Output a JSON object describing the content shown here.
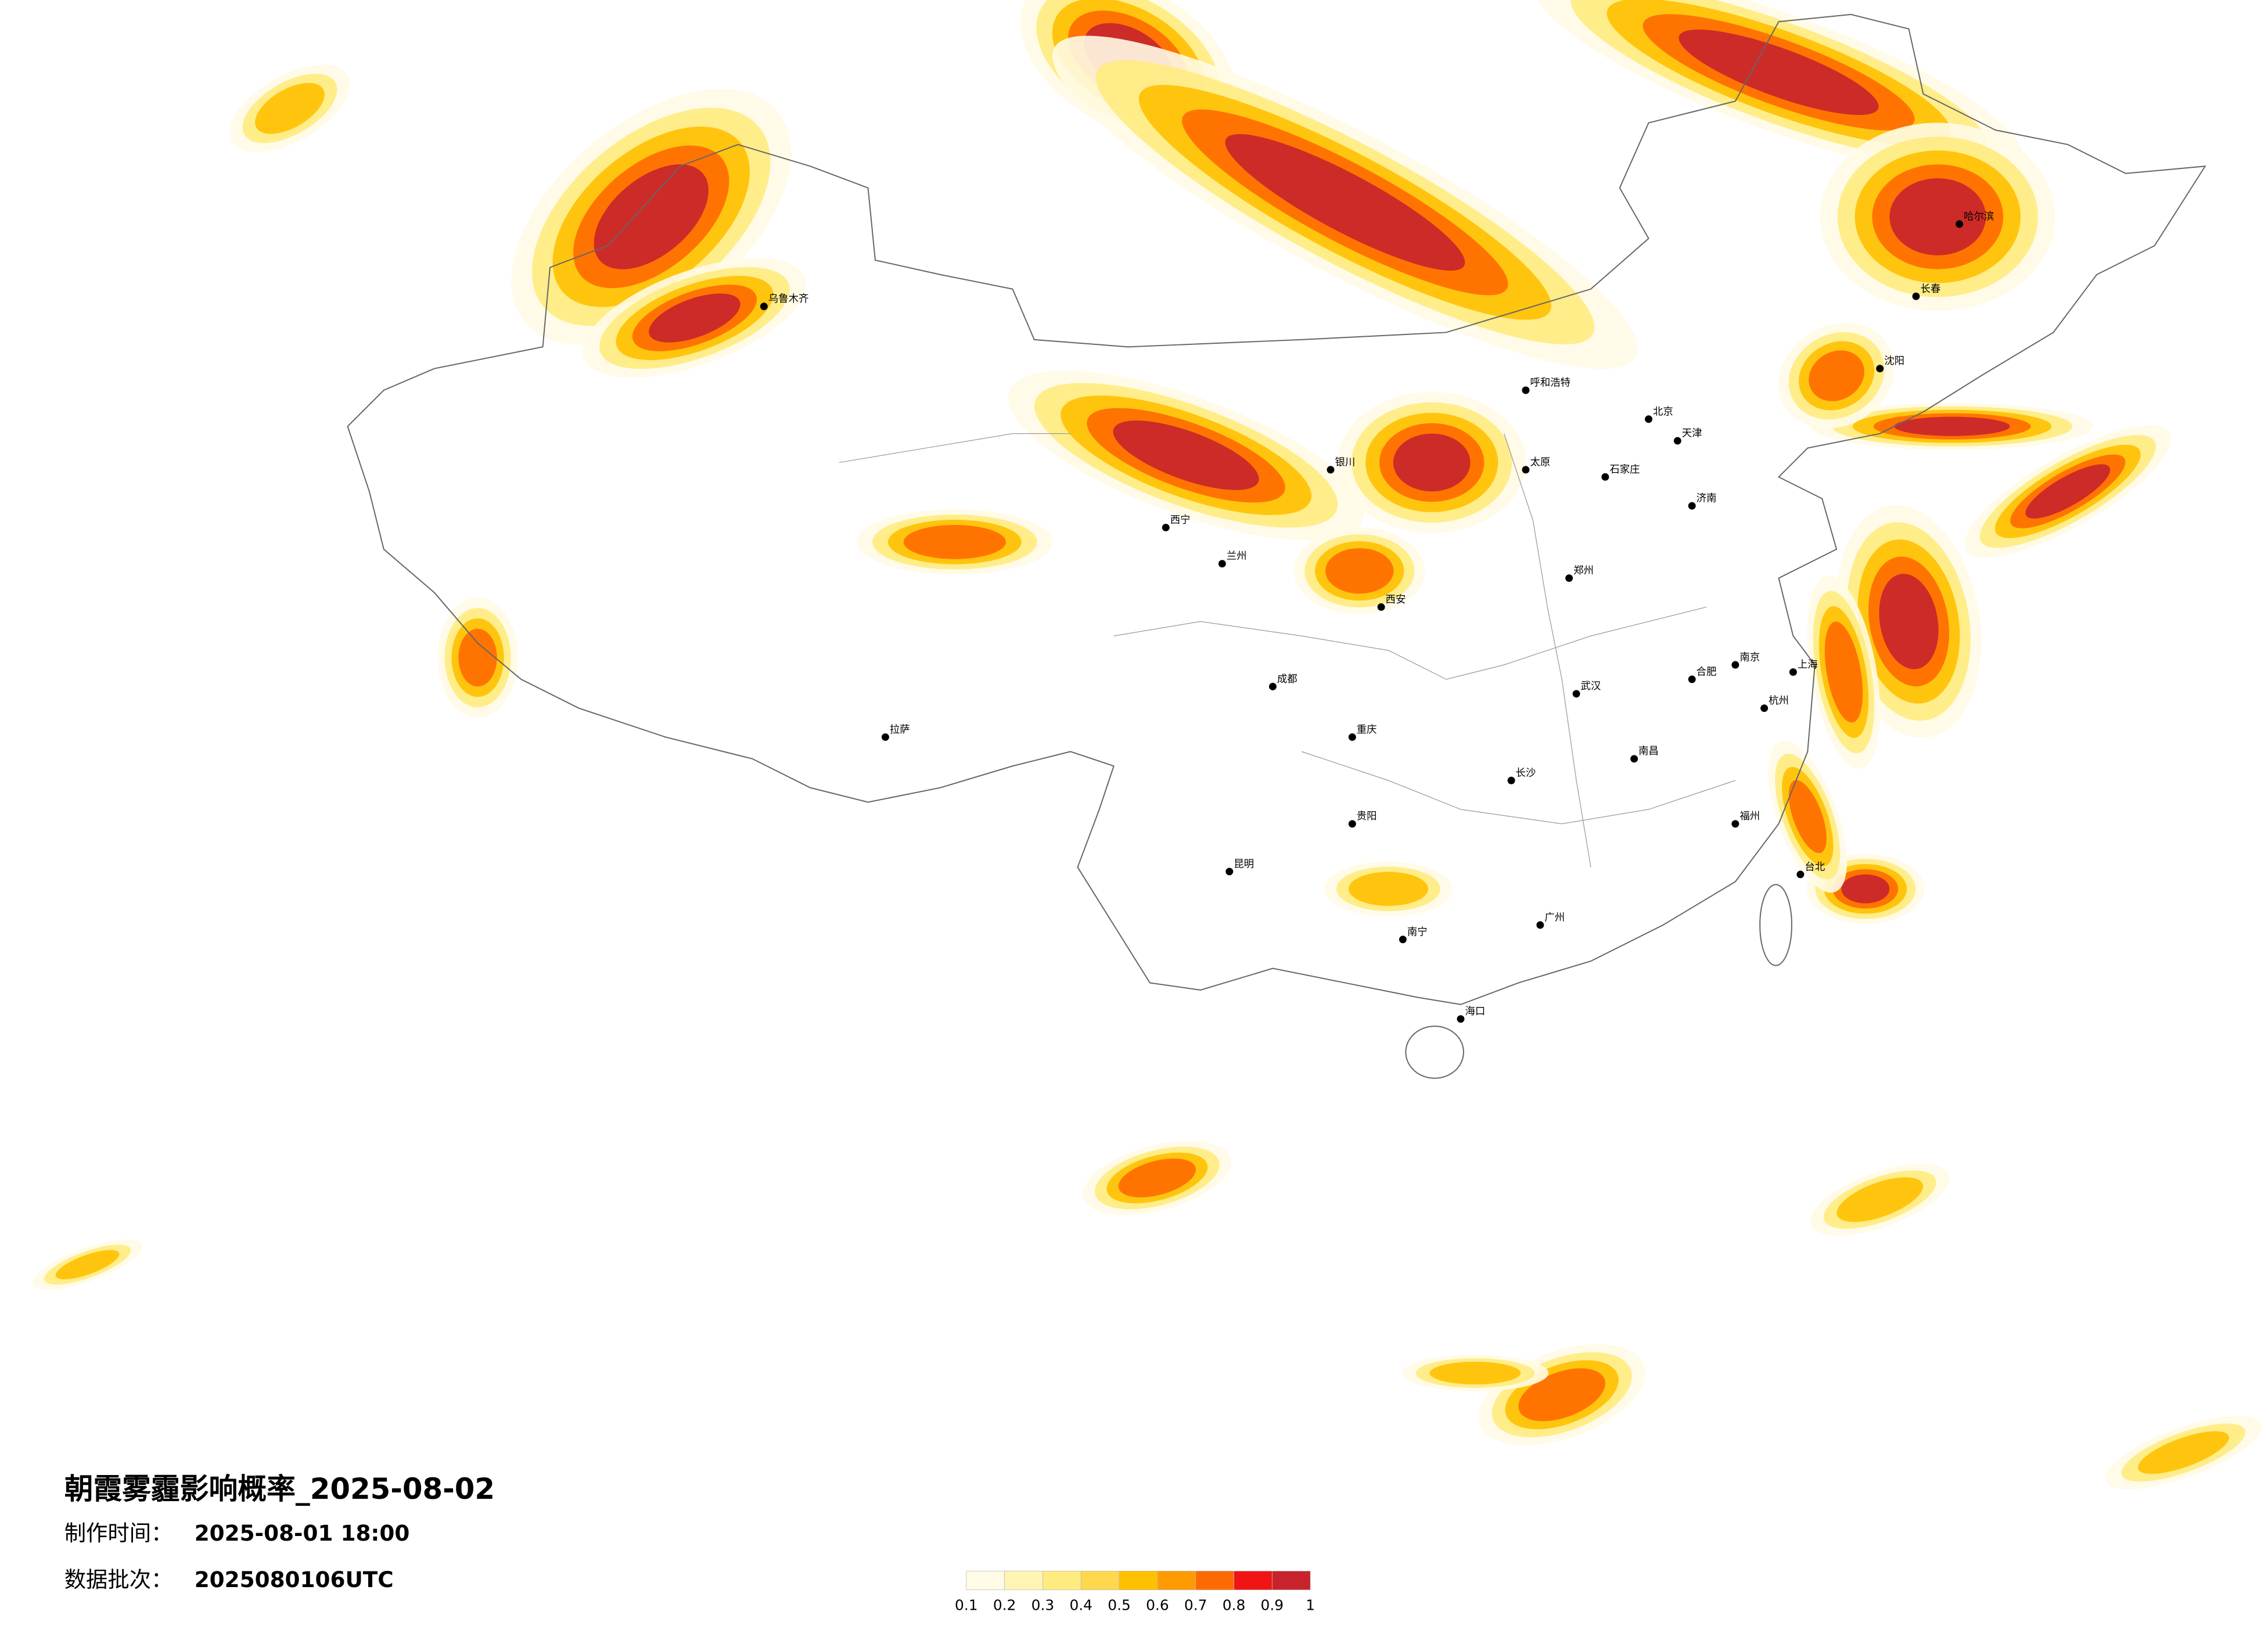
{
  "title": "朝霞雾霾影响概率_2025-08-02",
  "meta": [
    {
      "label": "制作时间：",
      "value": "2025-08-01 18:00"
    },
    {
      "label": "数据批次：",
      "value": "2025080106UTC"
    }
  ],
  "legend": {
    "ticks": [
      0.1,
      0.2,
      0.3,
      0.4,
      0.5,
      0.6,
      0.7,
      0.8,
      0.9,
      1
    ],
    "colors": [
      "#fffbe6",
      "#fff5b3",
      "#ffeb80",
      "#ffd84d",
      "#ffc000",
      "#ff9a00",
      "#ff6a00",
      "#f01414",
      "#c8232c"
    ]
  },
  "cities": [
    "乌鲁木齐",
    "拉萨",
    "西宁",
    "兰州",
    "成都",
    "重庆",
    "昆明",
    "贵阳",
    "南宁",
    "广州",
    "长沙",
    "武汉",
    "郑州",
    "西安",
    "太原",
    "石家庄",
    "北京",
    "天津",
    "济南",
    "南京",
    "上海",
    "杭州",
    "福州",
    "南昌",
    "合肥",
    "哈尔滨",
    "长春",
    "沈阳",
    "呼和浩特",
    "银川",
    "海口",
    "台北"
  ]
}
